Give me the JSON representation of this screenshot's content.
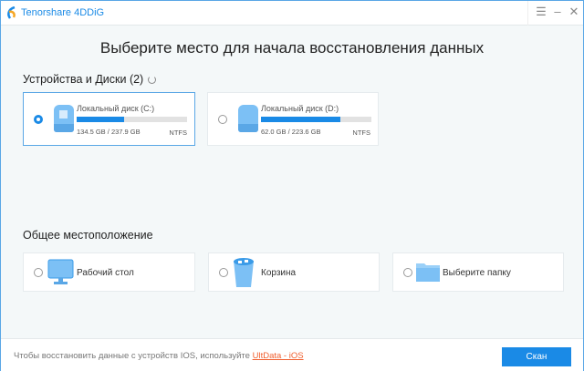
{
  "app": {
    "title": "Tenorshare 4DDiG",
    "accent": "#1a8ae6"
  },
  "window_controls": {
    "menu": "☰",
    "minimize": "–",
    "close": "✕"
  },
  "heading": "Выберите место для начала восстановления данных",
  "devices": {
    "label": "Устройства и Диски (2)",
    "items": [
      {
        "name": "Локальный диск (C:)",
        "size": "134.5 GB / 237.9 GB",
        "fs": "NTFS",
        "fill_percent": 43,
        "selected": true,
        "icon": "windows-drive-icon"
      },
      {
        "name": "Локальный диск (D:)",
        "size": "62.0 GB / 223.6 GB",
        "fs": "NTFS",
        "fill_percent": 72,
        "selected": false,
        "icon": "drive-icon"
      }
    ]
  },
  "common": {
    "label": "Общее местоположение",
    "items": [
      {
        "name": "Рабочий стол",
        "icon": "desktop-icon"
      },
      {
        "name": "Корзина",
        "icon": "recycle-bin-icon"
      },
      {
        "name": "Выберите папку",
        "icon": "folder-icon"
      }
    ]
  },
  "footer": {
    "text": "Чтобы восстановить данные с устройств IOS, используйте ",
    "link": "UltData - iOS",
    "scan_label": "Скан"
  }
}
